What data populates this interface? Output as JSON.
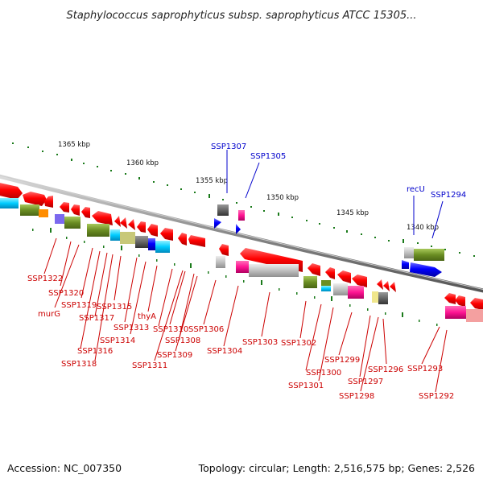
{
  "title": "Staphylococcus saprophyticus subsp. saprophyticus ATCC 15305...",
  "footer": {
    "accession": "Accession: NC_007350",
    "summary": "Topology: circular; Length: 2,516,575 bp; Genes: 2,526"
  },
  "colors": {
    "forward_gene": "#ff0000",
    "reverse_gene": "#ff0000",
    "backbone": "#888888",
    "tick": "#1a7a1a",
    "label_red": "#cc0000",
    "label_blue": "#0000cc"
  },
  "scale": {
    "ticks": [
      "1365 kbp",
      "1360 kbp",
      "1355 kbp",
      "1350 kbp",
      "1345 kbp",
      "1340 kbp"
    ]
  },
  "labels_top": [
    "SSP1307",
    "SSP1305",
    "recU",
    "SSP1294"
  ],
  "labels_bottom": [
    "SSP1322",
    "SSP1320",
    "murG",
    "SSP1319",
    "SSP1315",
    "SSP1317",
    "SSP1313",
    "thyA",
    "SSP1314",
    "SSP1310",
    "SSP1306",
    "SSP1316",
    "SSP1308",
    "SSP1318",
    "SSP1309",
    "SSP1311",
    "SSP1304",
    "SSP1303",
    "SSP1302",
    "SSP1299",
    "SSP1300",
    "SSP1296",
    "SSP1293",
    "SSP1301",
    "SSP1297",
    "SSP1298",
    "SSP1292"
  ]
}
